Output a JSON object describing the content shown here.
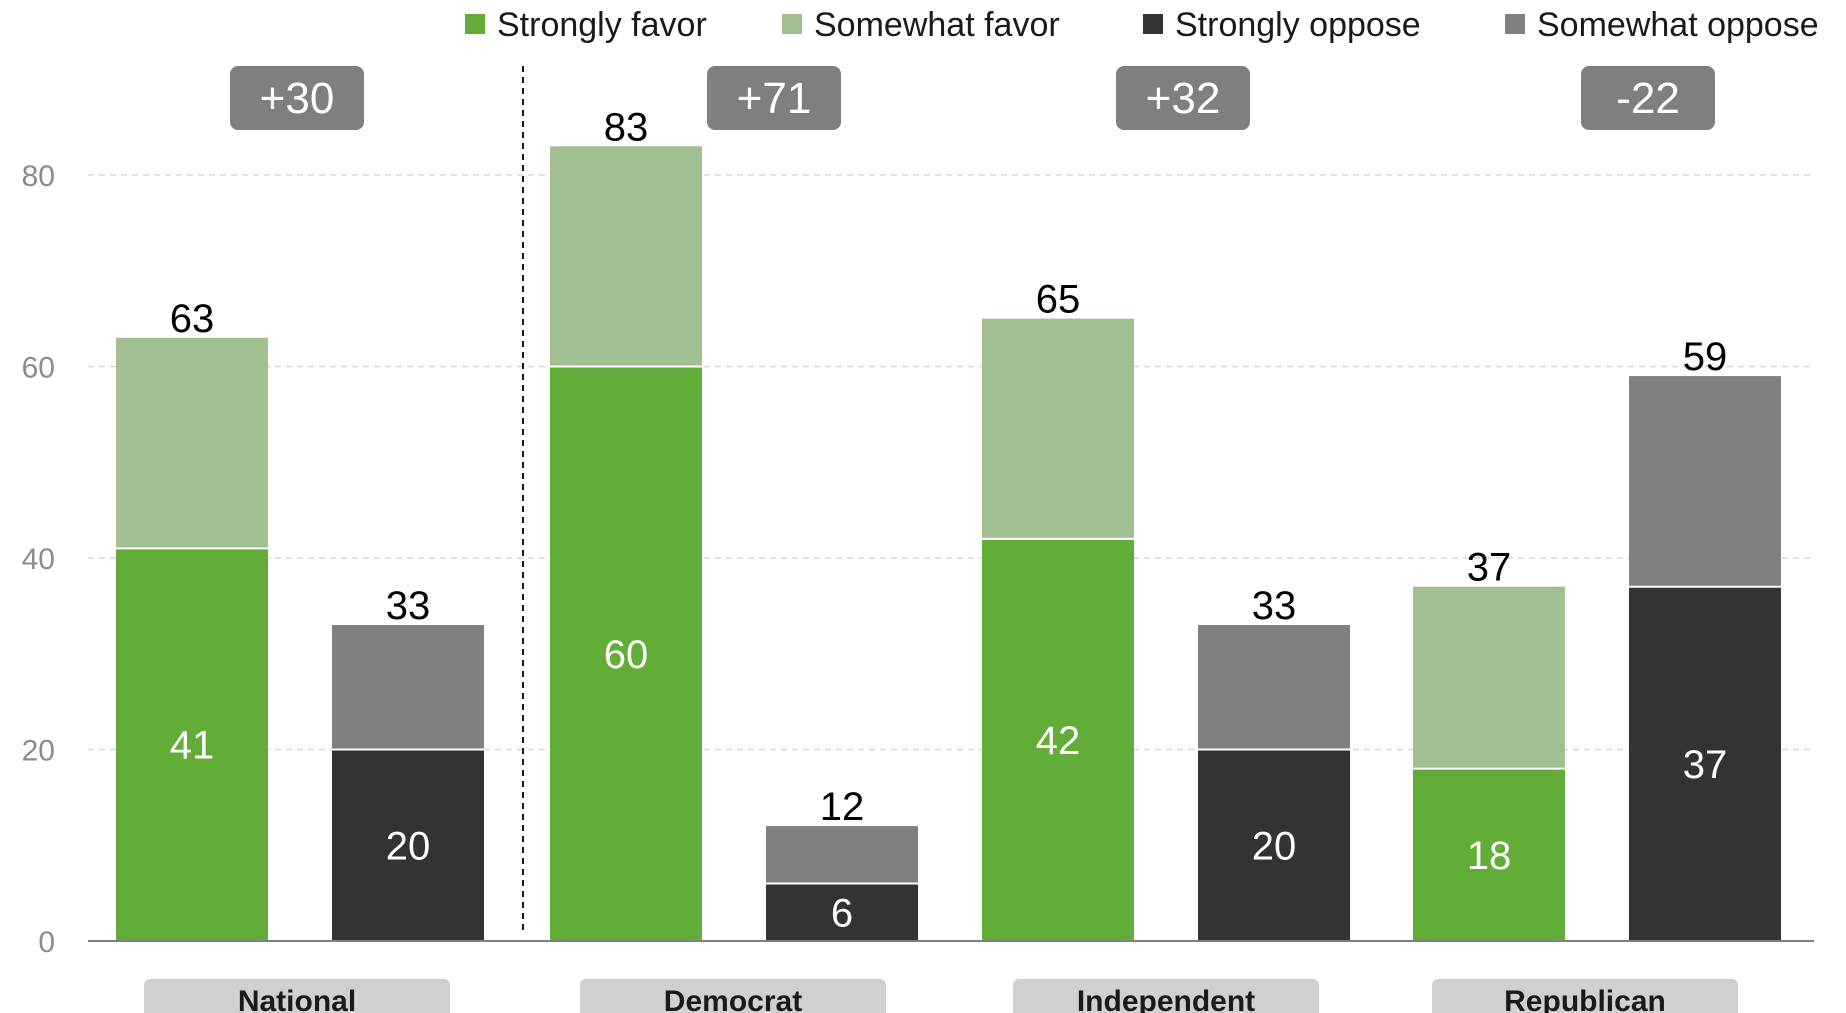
{
  "chart_data": {
    "type": "bar",
    "stacked": true,
    "ylim": [
      0,
      80
    ],
    "yticks": [
      "0",
      "20",
      "40",
      "60",
      "80"
    ],
    "grid": true,
    "legend": [
      {
        "name": "Strongly favor",
        "color": "#62ad38"
      },
      {
        "name": "Somewhat favor",
        "color": "#a2bf91"
      },
      {
        "name": "Strongly oppose",
        "color": "#333333"
      },
      {
        "name": "Somewhat oppose",
        "color": "#808080"
      }
    ],
    "groups": [
      {
        "name": "National",
        "margin": "+30",
        "bars": [
          {
            "kind": "favor",
            "strong": 41,
            "somewhat": 22,
            "strong_label": "41",
            "total_label": "63"
          },
          {
            "kind": "oppose",
            "strong": 20,
            "somewhat": 13,
            "strong_label": "20",
            "total_label": "33"
          }
        ]
      },
      {
        "name": "Democrat",
        "margin": "+71",
        "bars": [
          {
            "kind": "favor",
            "strong": 60,
            "somewhat": 23,
            "strong_label": "60",
            "total_label": "83"
          },
          {
            "kind": "oppose",
            "strong": 6,
            "somewhat": 6,
            "strong_label": "6",
            "total_label": "12"
          }
        ]
      },
      {
        "name": "Independent",
        "margin": "+32",
        "bars": [
          {
            "kind": "favor",
            "strong": 42,
            "somewhat": 23,
            "strong_label": "42",
            "total_label": "65"
          },
          {
            "kind": "oppose",
            "strong": 20,
            "somewhat": 13,
            "strong_label": "20",
            "total_label": "33"
          }
        ]
      },
      {
        "name": "Republican",
        "margin": "-22",
        "bars": [
          {
            "kind": "favor",
            "strong": 18,
            "somewhat": 19,
            "strong_label": "18",
            "total_label": "37"
          },
          {
            "kind": "oppose",
            "strong": 37,
            "somewhat": 22,
            "strong_label": "37",
            "total_label": "59"
          }
        ]
      }
    ],
    "colors": {
      "favor_strong": "#62ad38",
      "favor_somewhat": "#a2bf91",
      "oppose_strong": "#333333",
      "oppose_somewhat": "#808080",
      "margin_box": "#7f7f7f",
      "group_box": "#d0d0d0",
      "grid": "#d6d6d6",
      "axis": "#7f7f7f"
    }
  }
}
